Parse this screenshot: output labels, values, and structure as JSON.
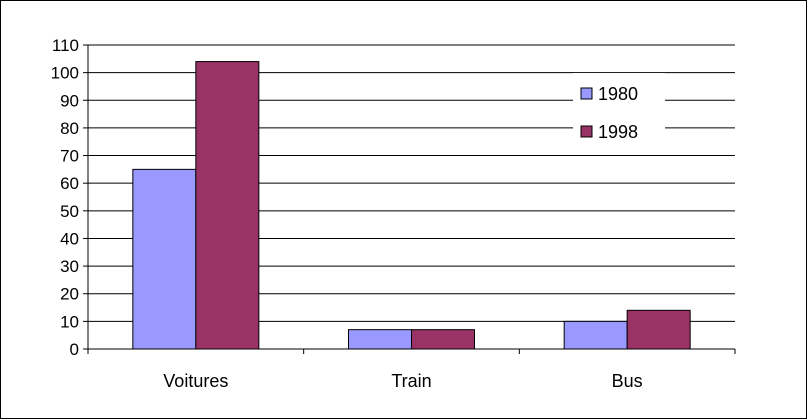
{
  "chart_data": {
    "type": "bar",
    "title": "",
    "xlabel": "",
    "ylabel": "",
    "categories": [
      "Voitures",
      "Train",
      "Bus"
    ],
    "series": [
      {
        "name": "1980",
        "values": [
          65,
          7,
          10
        ],
        "color": "#9999ff"
      },
      {
        "name": "1998",
        "values": [
          104,
          7,
          14
        ],
        "color": "#993366"
      }
    ],
    "ylim": [
      0,
      110
    ],
    "yticks": [
      0,
      10,
      20,
      30,
      40,
      50,
      60,
      70,
      80,
      90,
      100,
      110
    ],
    "grid": true,
    "legend_position": "top-right"
  }
}
